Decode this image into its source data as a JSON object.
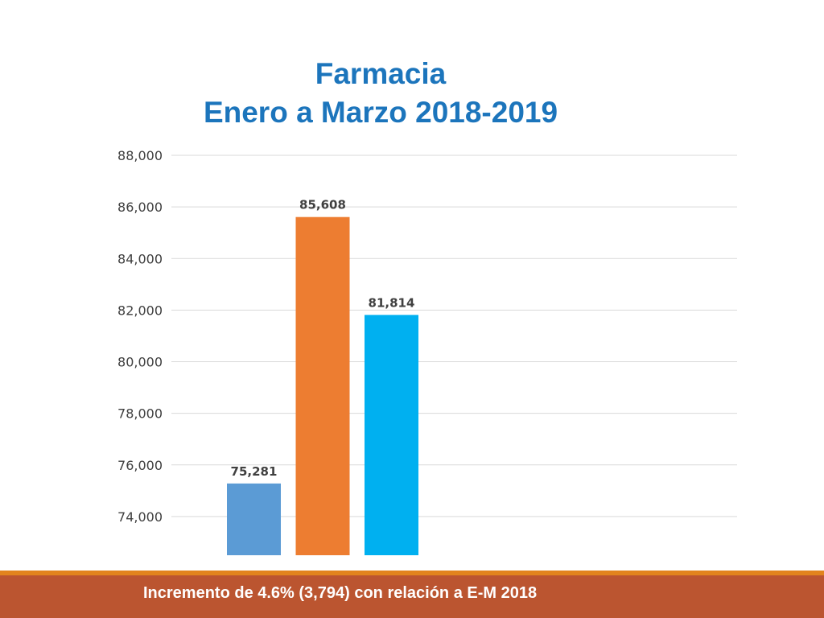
{
  "title_line1": "Farmacia",
  "title_line2": "Enero a Marzo 2018-2019",
  "footer_text": "Incremento de 4.6% (3,794) con relación a E-M 2018",
  "colors": {
    "title": "#1c75bc",
    "footer_band": "#bb5530",
    "footer_line": "#e2841d"
  },
  "chart_data": {
    "type": "bar",
    "title": "",
    "xlabel": "",
    "ylabel": "",
    "ylim": [
      72500,
      88000
    ],
    "yticks": [
      74000,
      76000,
      78000,
      80000,
      82000,
      84000,
      86000,
      88000
    ],
    "ytick_labels": [
      "74,000",
      "76,000",
      "78,000",
      "80,000",
      "82,000",
      "84,000",
      "86,000",
      "88,000"
    ],
    "grid": true,
    "legend": "none",
    "bars": [
      {
        "value": 75281,
        "label": "75,281",
        "color": "#5b9bd5"
      },
      {
        "value": 85608,
        "label": "85,608",
        "color": "#ed7d31"
      },
      {
        "value": 81814,
        "label": "81,814",
        "color": "#00b0f0"
      }
    ]
  }
}
